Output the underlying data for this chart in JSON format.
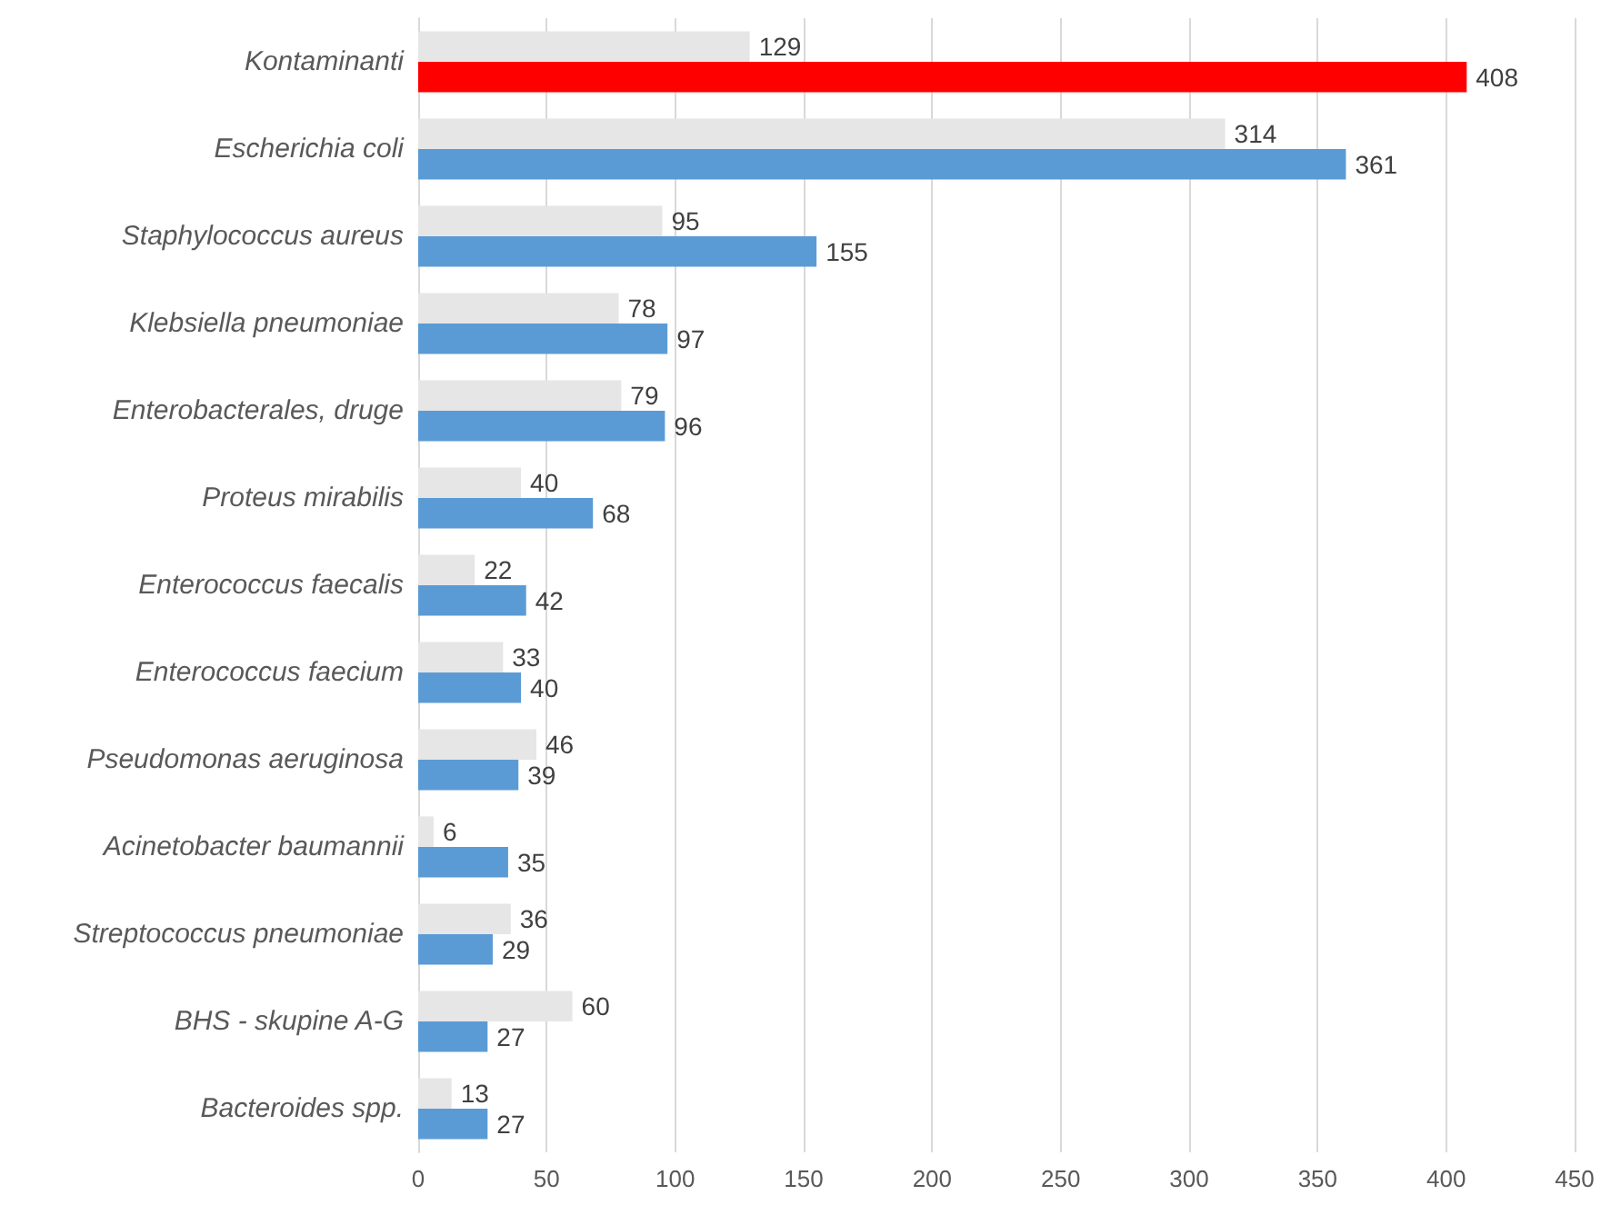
{
  "chart_data": {
    "type": "bar",
    "orientation": "horizontal",
    "categories": [
      "Kontaminanti",
      "Escherichia coli",
      "Staphylococcus aureus",
      "Klebsiella pneumoniae",
      "Enterobacterales, druge",
      "Proteus mirabilis",
      "Enterococcus faecalis",
      "Enterococcus faecium",
      "Pseudomonas aeruginosa",
      "Acinetobacter baumannii",
      "Streptococcus pneumoniae",
      "BHS - skupine A-G",
      "Bacteroides spp."
    ],
    "series": [
      {
        "color": "#e7e6e6",
        "values": [
          129,
          314,
          95,
          78,
          79,
          40,
          22,
          33,
          46,
          6,
          36,
          60,
          13
        ]
      },
      {
        "color": "#5b9bd5",
        "colors": [
          "#ff0000",
          "#5b9bd5",
          "#5b9bd5",
          "#5b9bd5",
          "#5b9bd5",
          "#5b9bd5",
          "#5b9bd5",
          "#5b9bd5",
          "#5b9bd5",
          "#5b9bd5",
          "#5b9bd5",
          "#5b9bd5",
          "#5b9bd5"
        ],
        "values": [
          408,
          361,
          155,
          97,
          96,
          68,
          42,
          40,
          39,
          35,
          29,
          27,
          27
        ]
      }
    ],
    "xlim": [
      0,
      450
    ],
    "xticks": [
      0,
      50,
      100,
      150,
      200,
      250,
      300,
      350,
      400,
      450
    ],
    "grid": "x",
    "data_labels": true
  }
}
